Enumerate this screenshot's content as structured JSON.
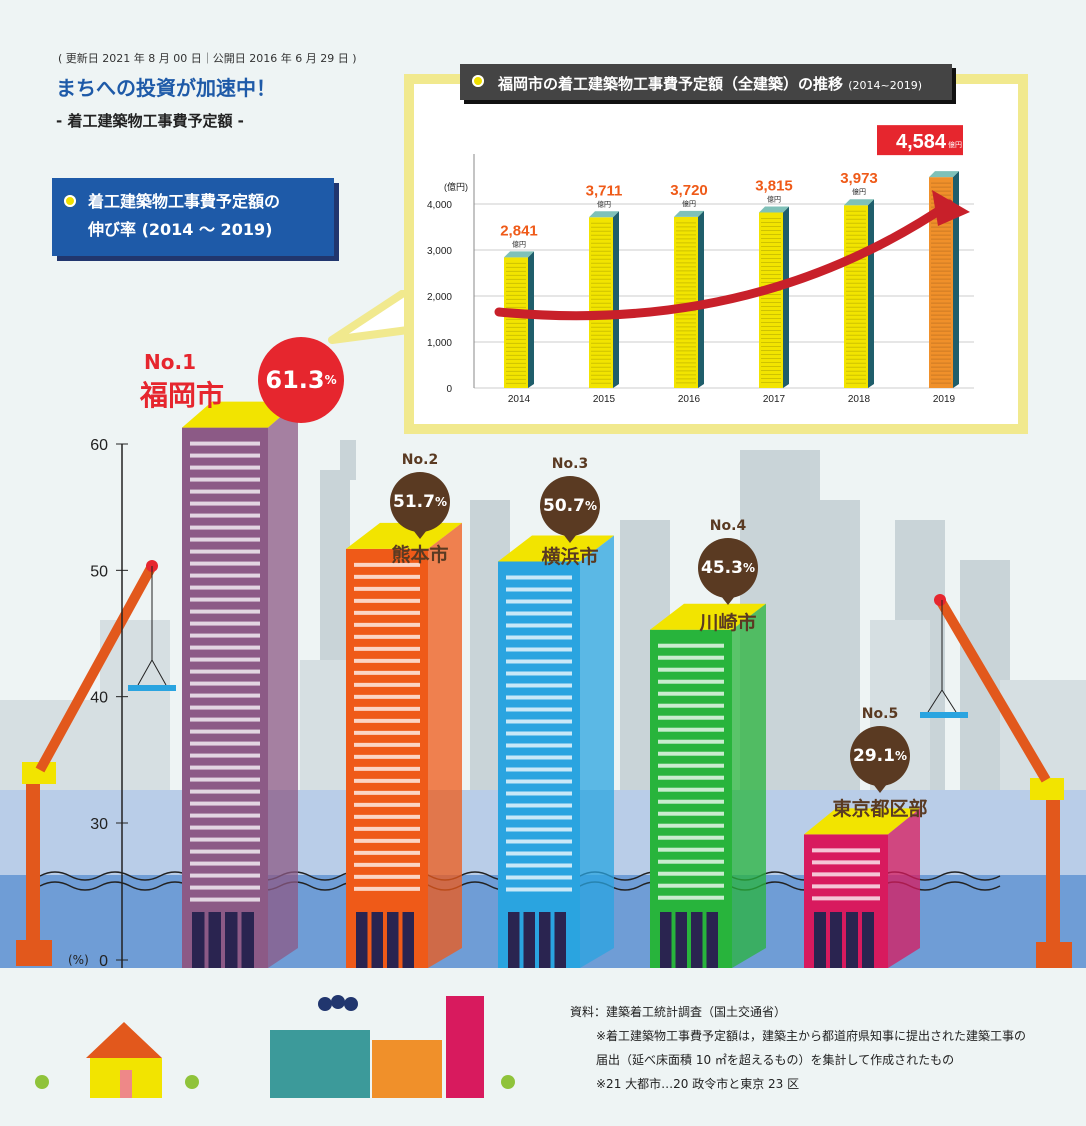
{
  "meta": "( 更新日 2021 年 8 月 00 日｜公開日 2016 年 6 月 29 日 )",
  "headline": "まちへの投資が加速中！",
  "subheadline": "- 着工建築物工事費予定額 -",
  "growth_box": {
    "line1": "着工建築物工事費予定額の",
    "line2": "伸び率 (2014 ～ 2019)"
  },
  "inset_title": {
    "main": "福岡市の着工建築物工事費予定額（全建築）の推移",
    "range": "(2014~2019)"
  },
  "source": {
    "line1": "資料：建築着工統計調査（国土交通省）",
    "line2": "※着工建築物工事費予定額は，建築主から都道府県知事に提出された建築工事の",
    "line3": "届出（延べ床面積 10 ㎡を超えるもの）を集計して作成されたもの",
    "line4": "※21 大都市…20 政令市と東京 23 区"
  },
  "colors": {
    "accent_blue": "#1e5aa8",
    "red": "#e6262e",
    "brown": "#5a3a22",
    "bar_yellow": "#f2e400",
    "bar_orange": "#f0902a",
    "bar_side": "#1f5e6b"
  },
  "chart_data": [
    {
      "type": "bar",
      "ylabel_unit": "(億円)",
      "categories": [
        "2014",
        "2015",
        "2016",
        "2017",
        "2018",
        "2019"
      ],
      "values": [
        2841,
        3711,
        3720,
        3815,
        3973,
        4584
      ],
      "value_labels": [
        "2,841",
        "3,711",
        "3,720",
        "3,815",
        "3,973",
        "4,584"
      ],
      "value_unit": "億円",
      "ylim": [
        0,
        4000
      ],
      "yticks": [
        "0",
        "1,000",
        "2,000",
        "3,000",
        "4,000"
      ],
      "grid": true,
      "highlight_index": 5
    },
    {
      "type": "bar",
      "ylabel_unit": "(%)",
      "categories": [
        "福岡市",
        "熊本市",
        "横浜市",
        "川崎市",
        "東京都区部"
      ],
      "ranks": [
        "No.1",
        "No.2",
        "No.3",
        "No.4",
        "No.5"
      ],
      "values": [
        61.3,
        51.7,
        50.7,
        45.3,
        29.1
      ],
      "value_labels": [
        "61.3",
        "51.7",
        "50.7",
        "45.3",
        "29.1"
      ],
      "value_unit": "%",
      "yticks": [
        "0",
        "30",
        "40",
        "50",
        "60"
      ],
      "axis_break": true,
      "bar_colors": [
        "#8c5a86",
        "#ef5a18",
        "#2aa4e0",
        "#28b43c",
        "#d81a5e"
      ]
    }
  ]
}
